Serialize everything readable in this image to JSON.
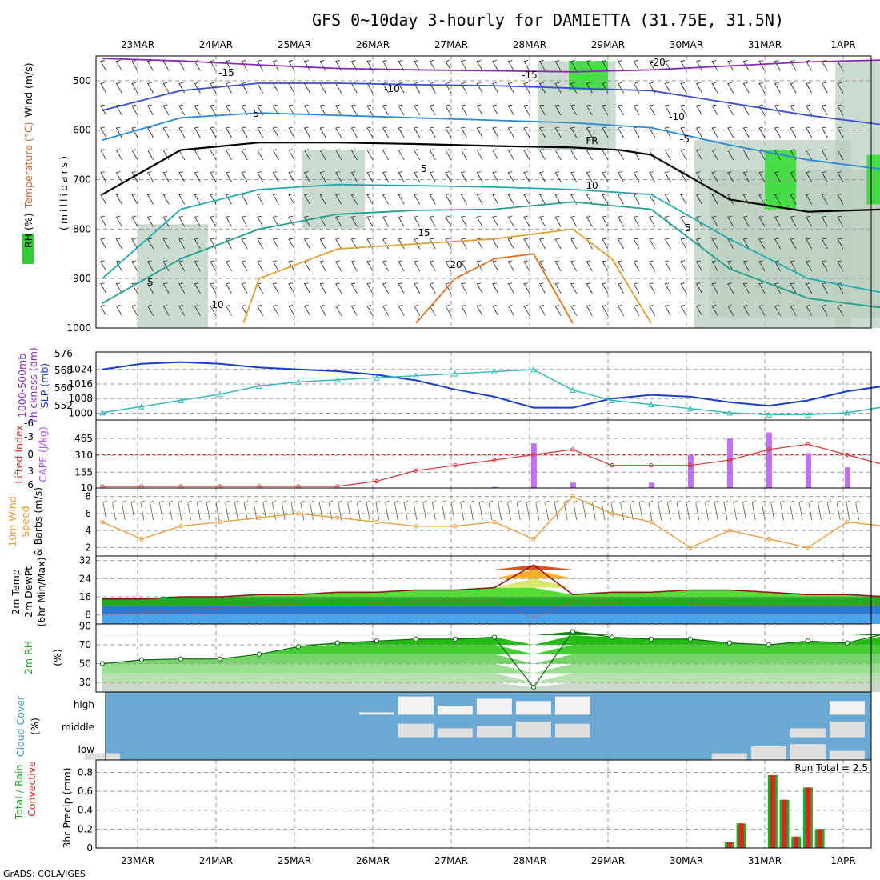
{
  "title": "GFS 0~10day 3-hourly for DAMIETTA (31.75E, 31.5N)",
  "footer": "GrADS: COLA/IGES",
  "dates": [
    "23MAR",
    "24MAR",
    "25MAR",
    "26MAR",
    "27MAR",
    "28MAR",
    "29MAR",
    "30MAR",
    "31MAR",
    "1APR"
  ],
  "colors": {
    "temp_line": "#8b1a1a",
    "dewpt_line": "#c05050",
    "rh_green": "#22bb22",
    "cloud_blue": "#6aa9d4",
    "cloud_white": "#f2f2f5",
    "precip_green": "#22aa22",
    "precip_red": "#dd2222",
    "cape_bar": "#bf6fef",
    "li_line": "#dd3333",
    "wind_line": "#e89a33",
    "slp_line": "#1a3ccc",
    "thick_line": "#33bbbb"
  },
  "chart_data": [
    {
      "id": "upper_air",
      "type": "heatmap",
      "ylabel_parts": [
        "RH (%)",
        "Temperature (°C)",
        "Wind (m/s)"
      ],
      "ylabel2": "(millibars)",
      "y_ticks": [
        "500",
        "600",
        "700",
        "800",
        "900",
        "1000"
      ],
      "ylim": [
        1000,
        450
      ],
      "contour_labels": [
        "-15",
        "-15",
        "-20",
        "-10",
        "-10",
        "-5",
        "-5",
        "5",
        "10",
        "15",
        "20",
        "5",
        "10",
        "5",
        "FR"
      ],
      "contours": [
        {
          "name": "-15",
          "color": "#8a2bb5",
          "x": [
            0,
            1,
            2,
            3,
            4,
            5,
            6,
            7,
            8,
            9,
            10
          ],
          "p": [
            455,
            460,
            468,
            475,
            478,
            480,
            482,
            478,
            470,
            462,
            458
          ]
        },
        {
          "name": "-10",
          "color": "#3a4fd0",
          "x": [
            0,
            1,
            2,
            3,
            4,
            5,
            6,
            7,
            8,
            9,
            10
          ],
          "p": [
            560,
            520,
            505,
            505,
            508,
            510,
            515,
            520,
            545,
            570,
            590
          ]
        },
        {
          "name": "-5",
          "color": "#2a8ad6",
          "x": [
            0,
            1,
            2,
            3,
            4,
            5,
            6,
            7,
            8,
            9,
            10
          ],
          "p": [
            620,
            575,
            565,
            570,
            575,
            580,
            585,
            595,
            630,
            660,
            680
          ]
        },
        {
          "name": "5",
          "color": "#22aab0",
          "x": [
            0,
            1,
            2,
            3,
            4,
            5,
            6,
            7,
            8,
            9,
            10
          ],
          "p": [
            900,
            760,
            720,
            710,
            712,
            715,
            720,
            730,
            820,
            900,
            930
          ]
        },
        {
          "name": "10",
          "color": "#20a090",
          "x": [
            0,
            1,
            2,
            3,
            4,
            5,
            6,
            7,
            8,
            9,
            10
          ],
          "p": [
            950,
            860,
            800,
            770,
            762,
            760,
            745,
            760,
            880,
            940,
            960
          ]
        },
        {
          "name": "15",
          "color": "#e0a030",
          "x": [
            1.8,
            2,
            3,
            4,
            5,
            6,
            6.5,
            7
          ],
          "p": [
            990,
            900,
            840,
            830,
            820,
            800,
            860,
            990
          ]
        },
        {
          "name": "20",
          "color": "#e07020",
          "x": [
            4,
            4.5,
            5,
            5.5,
            6
          ],
          "p": [
            990,
            900,
            860,
            850,
            990
          ]
        },
        {
          "name": "FR",
          "color": "#000000",
          "x": [
            0,
            1,
            2,
            3,
            4,
            5,
            6,
            6.6,
            7,
            8,
            9,
            10
          ],
          "p": [
            730,
            640,
            625,
            625,
            628,
            632,
            635,
            640,
            650,
            740,
            765,
            760
          ]
        }
      ],
      "rh_shading": [
        {
          "x0": 7.1,
          "x1": 9.1,
          "p0": 620,
          "p1": 1000
        },
        {
          "x0": 7.3,
          "x1": 9.6,
          "p0": 680,
          "p1": 980
        },
        {
          "x0": 8.9,
          "x1": 10,
          "p0": 460,
          "p1": 1000
        },
        {
          "x0": 5.1,
          "x1": 6.1,
          "p0": 460,
          "p1": 640
        },
        {
          "x0": 0,
          "x1": 0.9,
          "p0": 790,
          "p1": 1000
        },
        {
          "x0": 2.1,
          "x1": 2.9,
          "p0": 640,
          "p1": 800
        }
      ],
      "rh_cores": [
        {
          "x0": 9.3,
          "x1": 9.9,
          "p0": 650,
          "p1": 750
        },
        {
          "x0": 5.5,
          "x1": 6.0,
          "p0": 460,
          "p1": 520
        },
        {
          "x0": 8.0,
          "x1": 8.4,
          "p0": 640,
          "p1": 760
        }
      ]
    },
    {
      "id": "slp_thickness",
      "type": "line",
      "ylabel_parts": [
        "1000-500mb",
        "Thickness (dm)",
        "SLP (mb)"
      ],
      "y_left_ticks": [
        "576",
        "568",
        "560",
        "552"
      ],
      "y_right_ticks": [
        "1024",
        "1016",
        "1008",
        "1000"
      ],
      "ylim_slp": [
        998,
        1030
      ],
      "ylim_thick": [
        548,
        578
      ],
      "x": [
        0,
        0.5,
        1,
        1.5,
        2,
        2.5,
        3,
        3.5,
        4,
        4.5,
        5,
        5.5,
        6,
        6.5,
        7,
        7.5,
        8,
        8.5,
        9,
        9.5,
        10
      ],
      "series": [
        {
          "name": "SLP (mb)",
          "values": [
            1024,
            1027,
            1028,
            1027,
            1025,
            1024,
            1023,
            1021,
            1018,
            1013,
            1009,
            1003,
            1003,
            1008,
            1010,
            1009,
            1006,
            1004,
            1007,
            1012,
            1015
          ]
        },
        {
          "name": "1000-500mb Thickness (dm)",
          "values": [
            550,
            553,
            556,
            559,
            563,
            565,
            566,
            567,
            568,
            569,
            570,
            571,
            561,
            556,
            554,
            552,
            550,
            549,
            549,
            550,
            553
          ]
        }
      ]
    },
    {
      "id": "cape_li",
      "type": "bar",
      "ylabel_parts": [
        "Lifted Index",
        "CAPE (J/kg)"
      ],
      "y_left_ticks": [
        "-6",
        "-3",
        "0",
        "3",
        "6"
      ],
      "y_right_ticks": [
        "465",
        "310",
        "155",
        "10"
      ],
      "ylim_cape": [
        10,
        620
      ],
      "ylim_li": [
        6,
        -6
      ],
      "x": [
        0,
        0.5,
        1,
        1.5,
        2,
        2.5,
        3,
        3.5,
        4,
        4.5,
        5,
        5.5,
        6,
        6.5,
        7,
        7.5,
        8,
        8.5,
        9,
        9.5,
        10
      ],
      "series": [
        {
          "name": "Lifted Index",
          "values": [
            6,
            6,
            6,
            6,
            6,
            6,
            6,
            5,
            3,
            2,
            1,
            0,
            -1,
            2,
            2,
            2,
            1,
            -1,
            -2,
            0,
            2
          ]
        },
        {
          "name": "CAPE (J/kg)",
          "values": [
            10,
            10,
            10,
            10,
            10,
            10,
            10,
            10,
            10,
            10,
            20,
            420,
            60,
            10,
            60,
            310,
            465,
            520,
            330,
            200,
            40
          ]
        }
      ]
    },
    {
      "id": "wind10m",
      "type": "line",
      "ylabel_parts": [
        "10m Wind",
        "Speed",
        "& Barbs (m/s)"
      ],
      "y_ticks": [
        "8",
        "6",
        "4",
        "2"
      ],
      "ylim": [
        1,
        9
      ],
      "x": [
        0,
        0.5,
        1,
        1.5,
        2,
        2.5,
        3,
        3.5,
        4,
        4.5,
        5,
        5.5,
        6,
        6.5,
        7,
        7.5,
        8,
        8.5,
        9,
        9.5,
        10
      ],
      "series": [
        {
          "name": "Speed",
          "values": [
            5,
            3,
            4.5,
            5,
            5.5,
            6,
            5.5,
            5,
            4.5,
            4.5,
            5,
            3,
            8,
            6,
            5,
            2,
            4,
            3,
            2,
            5,
            4.5
          ]
        }
      ]
    },
    {
      "id": "temp2m",
      "type": "area",
      "ylabel_parts": [
        "2m Temp",
        "2m DewPt",
        "(6hr Min/Max)"
      ],
      "y_ticks": [
        "32",
        "24",
        "16",
        "8"
      ],
      "ylim": [
        4,
        34
      ],
      "x": [
        0,
        0.5,
        1,
        1.5,
        2,
        2.5,
        3,
        3.5,
        4,
        4.5,
        5,
        5.5,
        6,
        6.5,
        7,
        7.5,
        8,
        8.5,
        9,
        9.5,
        10
      ],
      "series": [
        {
          "name": "2m Temp",
          "values": [
            15,
            15,
            16,
            16,
            17,
            17,
            18,
            18,
            19,
            19,
            20,
            30,
            17,
            18,
            18,
            19,
            19,
            18,
            17,
            17,
            16
          ]
        },
        {
          "name": "2m DewPt",
          "values": [
            8,
            9,
            10,
            11,
            12,
            13,
            13,
            13,
            14,
            14,
            14,
            7,
            14,
            13,
            13,
            13,
            12,
            12,
            12,
            12,
            13
          ]
        }
      ]
    },
    {
      "id": "rh2m",
      "type": "area",
      "ylabel_parts": [
        "2m RH",
        "(%)"
      ],
      "y_ticks": [
        "90",
        "70",
        "50",
        "30"
      ],
      "ylim": [
        20,
        92
      ],
      "x": [
        0,
        0.5,
        1,
        1.5,
        2,
        2.5,
        3,
        3.5,
        4,
        4.5,
        5,
        5.5,
        6,
        6.5,
        7,
        7.5,
        8,
        8.5,
        9,
        9.5,
        10
      ],
      "series": [
        {
          "name": "2m RH",
          "values": [
            50,
            54,
            55,
            55,
            60,
            68,
            72,
            74,
            76,
            76,
            78,
            25,
            84,
            78,
            76,
            76,
            72,
            70,
            74,
            72,
            82
          ]
        }
      ]
    },
    {
      "id": "cloud",
      "type": "area",
      "ylabel_parts": [
        "Cloud Cover",
        "(%)"
      ],
      "y_ticks": [
        "high",
        "middle",
        "low"
      ],
      "x": [
        0,
        0.5,
        1,
        1.5,
        2,
        2.5,
        3,
        3.5,
        4,
        4.5,
        5,
        5.5,
        6,
        6.5,
        7,
        7.5,
        8,
        8.5,
        9,
        9.5,
        10
      ],
      "series": [
        {
          "name": "high",
          "values": [
            0,
            0,
            0,
            0,
            0,
            0,
            0,
            10,
            80,
            40,
            70,
            60,
            80,
            0,
            0,
            0,
            0,
            0,
            0,
            60,
            0
          ]
        },
        {
          "name": "middle",
          "values": [
            0,
            0,
            0,
            0,
            0,
            0,
            0,
            0,
            60,
            40,
            50,
            70,
            60,
            0,
            0,
            0,
            0,
            0,
            40,
            70,
            0
          ]
        },
        {
          "name": "low",
          "values": [
            30,
            0,
            0,
            0,
            0,
            0,
            0,
            0,
            0,
            0,
            0,
            0,
            0,
            0,
            0,
            0,
            30,
            60,
            70,
            40,
            0
          ]
        }
      ]
    },
    {
      "id": "precip",
      "type": "bar",
      "ylabel_parts": [
        "Total / Rain",
        "Convective",
        "3hr Precip (mm)"
      ],
      "y_ticks": [
        "0.8",
        "0.6",
        "0.4",
        "0.2",
        "0"
      ],
      "ylim": [
        0,
        0.88
      ],
      "annotation": "Run Total = 2.5",
      "x": [
        7.55,
        7.7,
        8.1,
        8.25,
        8.4,
        8.55,
        8.7,
        8.85
      ],
      "series": [
        {
          "name": "Total",
          "values": [
            0.06,
            0.26,
            0.77,
            0.51,
            0.12,
            0.64,
            0.2,
            0
          ]
        },
        {
          "name": "Convective",
          "values": [
            0.06,
            0.26,
            0.77,
            0.51,
            0.12,
            0.64,
            0.2,
            0
          ]
        }
      ]
    }
  ]
}
